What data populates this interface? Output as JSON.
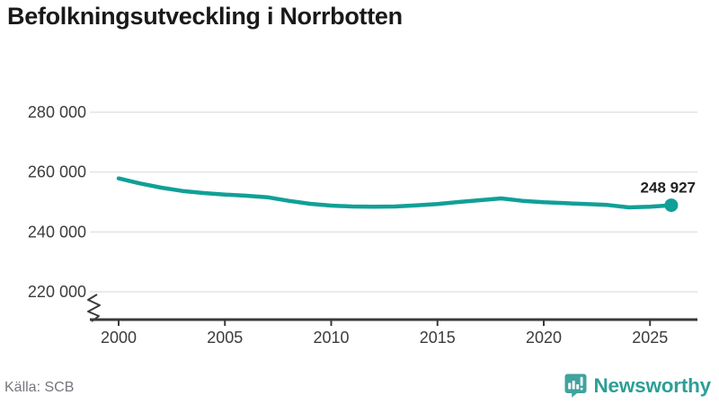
{
  "header": {
    "title": "Befolkningsutveckling i Norrbotten"
  },
  "footer": {
    "source": "Källa: SCB",
    "brand": "Newsworthy"
  },
  "colors": {
    "line": "#10a097",
    "dot": "#10a097",
    "grid": "#e3e3e3",
    "axis": "#3a3a3a",
    "tick_text": "#3c3c3c",
    "title_text": "#191919",
    "end_label_text": "#222222",
    "source_text": "#76767e",
    "brand_text": "#2d9f97",
    "brand_icon": "#42a29e"
  },
  "icons": {
    "brand_icon_name": "newsworthy-speech-bubble-bar-chart-icon"
  },
  "chart_data": {
    "type": "line",
    "title": "Befolkningsutveckling i Norrbotten",
    "xlabel": "",
    "ylabel": "",
    "grid": "horizontal",
    "legend": "none",
    "axis_break": true,
    "ylim": [
      220000,
      280000
    ],
    "xticks": [
      2000,
      2005,
      2010,
      2015,
      2020,
      2025
    ],
    "xtick_labels": [
      "2000",
      "2005",
      "2010",
      "2015",
      "2020",
      "2025"
    ],
    "yticks": [
      280000,
      260000,
      240000,
      220000
    ],
    "ytick_labels": [
      "280 000",
      "260 000",
      "240 000",
      "220 000"
    ],
    "x": [
      2000,
      2001,
      2002,
      2003,
      2004,
      2005,
      2006,
      2007,
      2008,
      2009,
      2010,
      2011,
      2012,
      2013,
      2014,
      2015,
      2016,
      2017,
      2018,
      2019,
      2020,
      2021,
      2022,
      2023,
      2024,
      2025,
      2026
    ],
    "values": [
      257900,
      256200,
      254800,
      253700,
      253000,
      252500,
      252100,
      251600,
      250400,
      249400,
      248800,
      248500,
      248400,
      248500,
      248900,
      249300,
      250000,
      250600,
      251200,
      250400,
      249900,
      249600,
      249300,
      249000,
      248200,
      248400,
      248927
    ],
    "end_value": 248927,
    "end_label": "248 927"
  }
}
